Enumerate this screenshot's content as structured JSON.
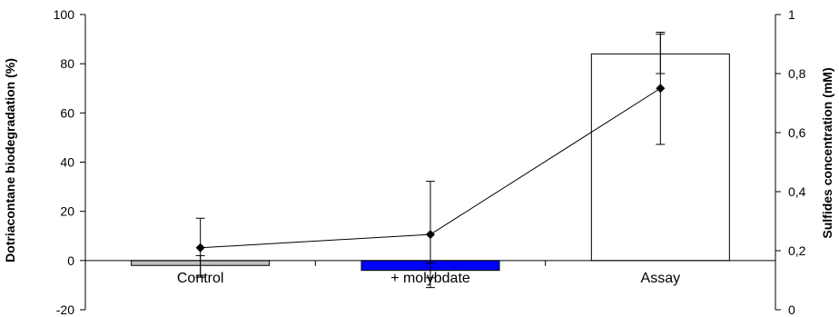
{
  "chart_data": {
    "type": "bar",
    "categories": [
      "Control",
      "+ molybdate",
      "Assay"
    ],
    "series": [
      {
        "values": [
          -2,
          -4,
          84
        ],
        "error": [
          4,
          3,
          8
        ],
        "colors": [
          "#c0c0c0",
          "#0000ff",
          "#ffffff"
        ],
        "axis": "left"
      },
      {
        "values": [
          0.21,
          0.255,
          0.75
        ],
        "error": [
          0.1,
          0.18,
          0.19
        ],
        "color": "#000000",
        "axis": "right",
        "kind": "line"
      }
    ],
    "ylabel": "Dotriacontane biodegradation (%)",
    "ylabel_right": "Sulfides concentration (mM)",
    "ylim": [
      -20,
      100
    ],
    "ylim_right": [
      0,
      1
    ],
    "yticks": [
      "-20",
      "0",
      "20",
      "40",
      "60",
      "80",
      "100"
    ],
    "yticks_right": [
      "0",
      "0,2",
      "0,4",
      "0,6",
      "0,8",
      "1"
    ],
    "grid": false,
    "legend": "none"
  }
}
